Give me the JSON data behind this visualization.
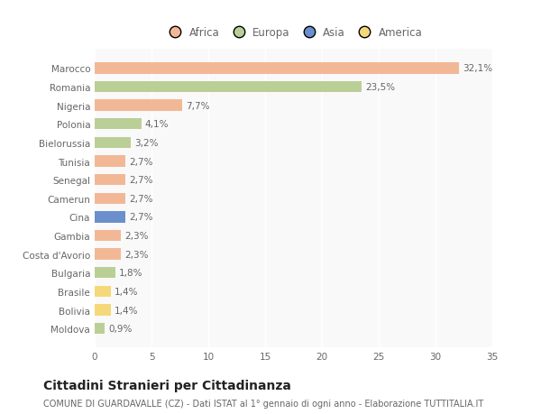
{
  "categories": [
    "Marocco",
    "Romania",
    "Nigeria",
    "Polonia",
    "Bielorussia",
    "Tunisia",
    "Senegal",
    "Camerun",
    "Cina",
    "Gambia",
    "Costa d'Avorio",
    "Bulgaria",
    "Brasile",
    "Bolivia",
    "Moldova"
  ],
  "values": [
    32.1,
    23.5,
    7.7,
    4.1,
    3.2,
    2.7,
    2.7,
    2.7,
    2.7,
    2.3,
    2.3,
    1.8,
    1.4,
    1.4,
    0.9
  ],
  "labels": [
    "32,1%",
    "23,5%",
    "7,7%",
    "4,1%",
    "3,2%",
    "2,7%",
    "2,7%",
    "2,7%",
    "2,7%",
    "2,3%",
    "2,3%",
    "1,8%",
    "1,4%",
    "1,4%",
    "0,9%"
  ],
  "colors": [
    "#F2B896",
    "#BACF96",
    "#F2B896",
    "#BACF96",
    "#BACF96",
    "#F2B896",
    "#F2B896",
    "#F2B896",
    "#6B8FCC",
    "#F2B896",
    "#F2B896",
    "#BACF96",
    "#F5D87A",
    "#F5D87A",
    "#BACF96"
  ],
  "continent_labels": [
    "Africa",
    "Europa",
    "Asia",
    "America"
  ],
  "continent_colors": [
    "#F2B896",
    "#BACF96",
    "#6B8FCC",
    "#F5D87A"
  ],
  "title": "Cittadini Stranieri per Cittadinanza",
  "subtitle": "COMUNE DI GUARDAVALLE (CZ) - Dati ISTAT al 1° gennaio di ogni anno - Elaborazione TUTTITALIA.IT",
  "xlim": [
    0,
    35
  ],
  "xticks": [
    0,
    5,
    10,
    15,
    20,
    25,
    30,
    35
  ],
  "background_color": "#ffffff",
  "plot_bg_color": "#f9f9f9",
  "bar_height": 0.6,
  "title_fontsize": 10,
  "subtitle_fontsize": 7,
  "label_fontsize": 7.5,
  "tick_fontsize": 7.5,
  "legend_fontsize": 8.5
}
